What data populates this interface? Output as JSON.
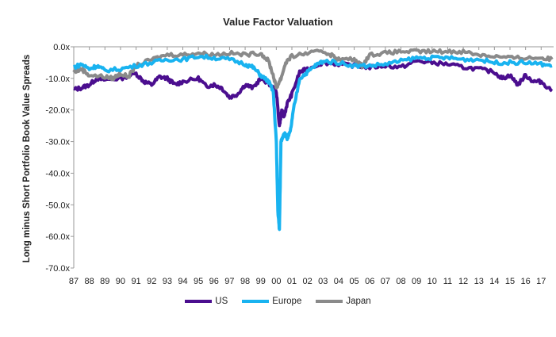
{
  "chart_data": {
    "type": "line",
    "title": "Value Factor Valuation",
    "xlabel": "",
    "ylabel": "Long minus Short Portfolio Book Value Spreads",
    "ylim": [
      -70,
      0
    ],
    "xlim": [
      1987,
      2017.8
    ],
    "yticks": [
      "0.0x",
      "-10.0x",
      "-20.0x",
      "-30.0x",
      "-40.0x",
      "-50.0x",
      "-60.0x",
      "-70.0x"
    ],
    "xticks": [
      "87",
      "88",
      "89",
      "90",
      "91",
      "92",
      "93",
      "94",
      "95",
      "96",
      "97",
      "98",
      "99",
      "00",
      "01",
      "02",
      "03",
      "04",
      "05",
      "06",
      "07",
      "08",
      "09",
      "10",
      "11",
      "12",
      "13",
      "14",
      "15",
      "16",
      "17"
    ],
    "legend_position": "bottom",
    "series": [
      {
        "name": "US",
        "color": "#4b0e8f",
        "x": [
          1987,
          1987.5,
          1988,
          1988.5,
          1989,
          1990,
          1991,
          1991.5,
          1992,
          1992.5,
          1993,
          1993.5,
          1994,
          1995,
          1995.5,
          1996,
          1996.5,
          1997,
          1997.5,
          1998,
          1998.5,
          1999,
          1999.5,
          2000,
          2000.2,
          2000.35,
          2000.5,
          2000.7,
          2001,
          2001.5,
          2002,
          2003,
          2004,
          2005,
          2006,
          2007,
          2008,
          2009,
          2010,
          2011,
          2012,
          2013,
          2014,
          2014.5,
          2015,
          2015.5,
          2016,
          2016.5,
          2017,
          2017.7
        ],
        "values": [
          -13.5,
          -13,
          -12,
          -10,
          -10.5,
          -10,
          -8.5,
          -11,
          -12,
          -9.5,
          -10,
          -12,
          -11,
          -10,
          -12.5,
          -12,
          -13,
          -16,
          -15,
          -12,
          -13,
          -10,
          -11.5,
          -14,
          -25,
          -20,
          -22,
          -18,
          -15,
          -8,
          -7,
          -5,
          -5.5,
          -6,
          -6.5,
          -6,
          -6.5,
          -4.5,
          -5,
          -5.5,
          -6.5,
          -7,
          -8,
          -10,
          -9,
          -12,
          -9,
          -11,
          -11,
          -14
        ]
      },
      {
        "name": "Europe",
        "color": "#19b3f0",
        "x": [
          1987,
          1987.5,
          1988,
          1988.5,
          1989,
          1990,
          1991,
          1992,
          1993,
          1994,
          1995,
          1996,
          1997,
          1998,
          1998.5,
          1999,
          1999.5,
          1999.8,
          2000,
          2000.1,
          2000.2,
          2000.3,
          2000.5,
          2000.7,
          2000.9,
          2001.1,
          2001.5,
          2002,
          2002.5,
          2003,
          2004,
          2005,
          2006,
          2007,
          2008,
          2009,
          2010,
          2011,
          2012,
          2013,
          2014,
          2015,
          2016,
          2017,
          2017.7
        ],
        "values": [
          -6.5,
          -5.5,
          -7,
          -6,
          -7.5,
          -7,
          -6,
          -5,
          -4,
          -4,
          -3,
          -3.5,
          -4,
          -5.5,
          -6.5,
          -9,
          -11,
          -14,
          -30,
          -52,
          -58,
          -30,
          -27,
          -29,
          -27,
          -20,
          -10,
          -8,
          -6,
          -4.5,
          -5,
          -6,
          -6,
          -5.5,
          -4.5,
          -3.5,
          -3.5,
          -3.5,
          -4,
          -4,
          -5,
          -5,
          -5,
          -5.5,
          -6
        ]
      },
      {
        "name": "Japan",
        "color": "#8a8a8a",
        "x": [
          1987,
          1987.5,
          1988,
          1989,
          1989.5,
          1990,
          1990.5,
          1991,
          1992,
          1993,
          1994,
          1995,
          1996,
          1997,
          1998,
          1999,
          1999.5,
          1999.8,
          2000,
          2000.3,
          2000.6,
          2001,
          2002,
          2003,
          2003.5,
          2004,
          2005,
          2005.5,
          2006,
          2007,
          2008,
          2009,
          2010,
          2011,
          2012,
          2013,
          2014,
          2015,
          2016,
          2017,
          2017.7
        ],
        "values": [
          -8,
          -7,
          -9,
          -9.5,
          -10,
          -8.5,
          -9.5,
          -6,
          -4,
          -2.5,
          -2.5,
          -2,
          -2.5,
          -2,
          -2.5,
          -2,
          -4.5,
          -9,
          -13,
          -10,
          -5,
          -3,
          -2,
          -1.5,
          -2.5,
          -4,
          -4,
          -6,
          -2.5,
          -2,
          -1.5,
          -1.5,
          -1.5,
          -1.5,
          -1.5,
          -2.5,
          -3,
          -3.5,
          -3.5,
          -3.5,
          -4
        ]
      }
    ]
  }
}
